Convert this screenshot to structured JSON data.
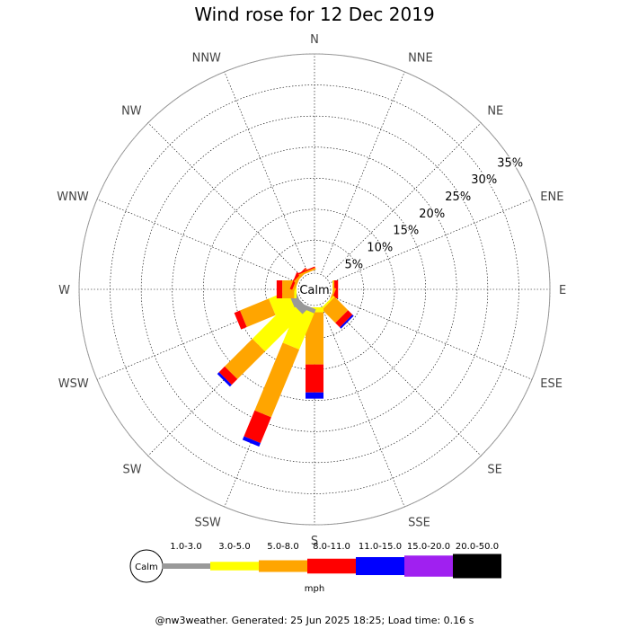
{
  "chart_data": {
    "type": "wind-rose",
    "title": "Wind rose for 12 Dec 2019",
    "directions": [
      "N",
      "NNE",
      "NE",
      "ENE",
      "E",
      "ESE",
      "SE",
      "SSE",
      "S",
      "SSW",
      "SW",
      "WSW",
      "W",
      "WNW",
      "NW",
      "NNW"
    ],
    "radial_ticks": [
      5,
      10,
      15,
      20,
      25,
      30,
      35
    ],
    "radial_tick_labels": [
      "5%",
      "10%",
      "15%",
      "20%",
      "25%",
      "30%",
      "35%"
    ],
    "radial_max": 35,
    "calm_label": "Calm",
    "speed_bins": [
      {
        "label": "1.0-3.0",
        "color": "#999999"
      },
      {
        "label": "3.0-5.0",
        "color": "#ffff00"
      },
      {
        "label": "5.0-8.0",
        "color": "#ffa500"
      },
      {
        "label": "8.0-11.0",
        "color": "#ff0000"
      },
      {
        "label": "11.0-15.0",
        "color": "#0000ff"
      },
      {
        "label": "15.0-20.0",
        "color": "#a020f0"
      },
      {
        "label": "20.0-50.0",
        "color": "#000000"
      }
    ],
    "unit_label": "mph",
    "series": [
      {
        "direction": "E",
        "values": [
          0,
          0.1,
          0.2,
          0.6,
          0,
          0,
          0
        ]
      },
      {
        "direction": "ESE",
        "values": [
          0,
          0,
          0.3,
          0.2,
          0,
          0,
          0
        ]
      },
      {
        "direction": "SE",
        "values": [
          0,
          0.3,
          3.0,
          1.0,
          0.3,
          0,
          0
        ]
      },
      {
        "direction": "S",
        "values": [
          0,
          0.8,
          8.4,
          4.5,
          1.0,
          0,
          0
        ]
      },
      {
        "direction": "SSW",
        "values": [
          0.7,
          6.3,
          11.8,
          4.5,
          0.6,
          0,
          0
        ]
      },
      {
        "direction": "SW",
        "values": [
          1.3,
          8.5,
          6.3,
          1.3,
          0.4,
          0,
          0
        ]
      },
      {
        "direction": "WSW",
        "values": [
          1.2,
          3.3,
          5.0,
          1.0,
          0,
          0,
          0
        ]
      },
      {
        "direction": "W",
        "values": [
          0,
          0.4,
          1.9,
          0.9,
          0,
          0,
          0
        ]
      },
      {
        "direction": "WNW",
        "values": [
          0,
          0,
          0.4,
          0.4,
          0,
          0,
          0
        ]
      },
      {
        "direction": "NW",
        "values": [
          0,
          0,
          0.4,
          0.2,
          0,
          0,
          0
        ]
      },
      {
        "direction": "NNW",
        "values": [
          0,
          0,
          0.3,
          0.2,
          0,
          0,
          0
        ]
      }
    ]
  },
  "footer": "@nw3weather. Generated: 25 Jun 2025 18:25; Load time: 0.16 s"
}
